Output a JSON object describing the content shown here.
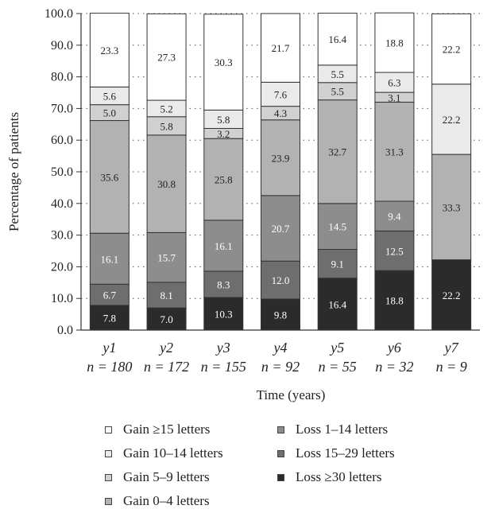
{
  "chart_data": {
    "type": "bar",
    "stacked": true,
    "xlabel": "Time (years)",
    "ylabel": "Percentage of patients",
    "ylim": [
      0,
      100
    ],
    "yticks": [
      "0.0",
      "10.0",
      "20.0",
      "30.0",
      "40.0",
      "50.0",
      "60.0",
      "70.0",
      "80.0",
      "90.0",
      "100.0"
    ],
    "grid": "dotted-horizontal",
    "legend_position": "bottom",
    "categories": [
      {
        "label": "y1",
        "n": "n = 180"
      },
      {
        "label": "y2",
        "n": "n = 172"
      },
      {
        "label": "y3",
        "n": "n = 155"
      },
      {
        "label": "y4",
        "n": "n = 92"
      },
      {
        "label": "y5",
        "n": "n = 55"
      },
      {
        "label": "y6",
        "n": "n = 32"
      },
      {
        "label": "y7",
        "n": "n = 9"
      }
    ],
    "series": [
      {
        "name": "Loss ≥30 letters",
        "color": "#2b2b2b",
        "labelColor": "#ffffff",
        "values": [
          7.8,
          7.0,
          10.3,
          9.8,
          16.4,
          18.8,
          22.2
        ],
        "labels": [
          "7.8",
          "7.0",
          "10.3",
          "9.8",
          "16.4",
          "18.8",
          "22.2"
        ]
      },
      {
        "name": "Loss 15–29 letters",
        "color": "#6e6e6e",
        "labelColor": "#ffffff",
        "values": [
          6.7,
          8.1,
          8.3,
          12.0,
          9.1,
          12.5,
          0.0
        ],
        "labels": [
          "6.7",
          "8.1",
          "8.3",
          "12.0",
          "9.1",
          "12.5",
          "0.0"
        ]
      },
      {
        "name": "Loss 1–14 letters",
        "color": "#8d8d8d",
        "labelColor": "#ffffff",
        "values": [
          16.1,
          15.7,
          16.1,
          20.7,
          14.5,
          9.4,
          0.0
        ],
        "labels": [
          "16.1",
          "15.7",
          "16.1",
          "20.7",
          "14.5",
          "9.4",
          ""
        ]
      },
      {
        "name": "Gain 0–4 letters",
        "color": "#b2b2b2",
        "labelColor": "#222222",
        "values": [
          35.6,
          30.8,
          25.8,
          23.9,
          32.7,
          31.3,
          33.3
        ],
        "labels": [
          "35.6",
          "30.8",
          "25.8",
          "23.9",
          "32.7",
          "31.3",
          "33.3"
        ]
      },
      {
        "name": "Gain 5–9 letters",
        "color": "#d0d0d0",
        "labelColor": "#222222",
        "values": [
          5.0,
          5.8,
          3.2,
          4.3,
          5.5,
          3.1,
          0.0
        ],
        "labels": [
          "5.0",
          "5.8",
          "3.2",
          "4.3",
          "5.5",
          "3.1",
          ""
        ]
      },
      {
        "name": "Gain 10–14 letters",
        "color": "#eaeaea",
        "labelColor": "#222222",
        "values": [
          5.6,
          5.2,
          5.8,
          7.6,
          5.5,
          6.3,
          22.2
        ],
        "labels": [
          "5.6",
          "5.2",
          "5.8",
          "7.6",
          "5.5",
          "6.3",
          "22.2"
        ]
      },
      {
        "name": "Gain ≥15 letters",
        "color": "#ffffff",
        "labelColor": "#222222",
        "values": [
          23.3,
          27.3,
          30.3,
          21.7,
          16.4,
          18.8,
          22.2
        ],
        "labels": [
          "23.3",
          "27.3",
          "30.3",
          "21.7",
          "16.4",
          "18.8",
          "22.2"
        ]
      }
    ],
    "legend": {
      "left": [
        "Gain ≥15 letters",
        "Gain 10–14 letters",
        "Gain 5–9 letters",
        "Gain 0–4 letters"
      ],
      "right": [
        "Loss 1–14 letters",
        "Loss 15–29 letters",
        "Loss ≥30 letters"
      ]
    }
  }
}
